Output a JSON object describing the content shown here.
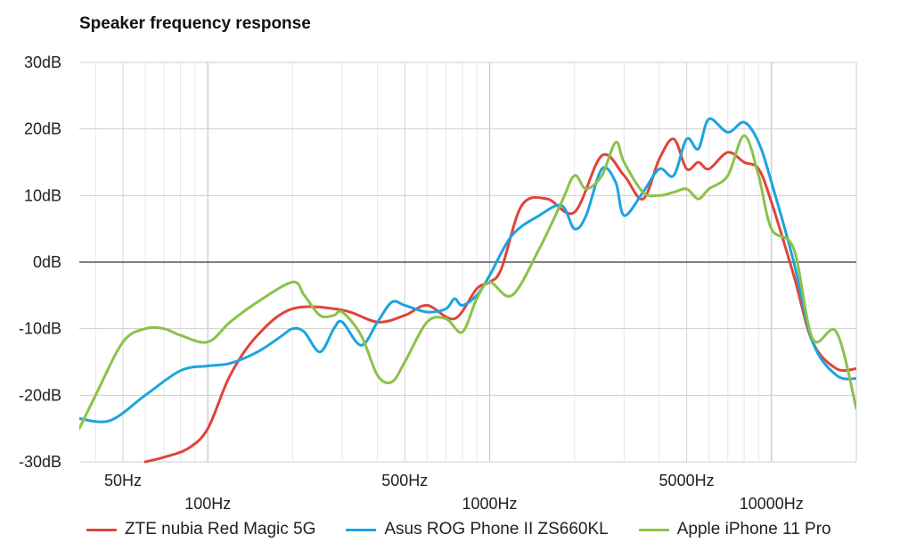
{
  "title": "Speaker frequency response",
  "chart_data": {
    "type": "line",
    "title": "Speaker frequency response",
    "x_scale": "log",
    "xlim": [
      35,
      20000
    ],
    "ylim": [
      -30,
      30
    ],
    "y_ticks": [
      30,
      20,
      10,
      0,
      -10,
      -20,
      -30
    ],
    "y_tick_labels": [
      "30dB",
      "20dB",
      "10dB",
      "0dB",
      "-10dB",
      "-20dB",
      "-30dB"
    ],
    "x_ticks": [
      50,
      100,
      500,
      1000,
      5000,
      10000
    ],
    "x_tick_labels": [
      "50Hz",
      "100Hz",
      "500Hz",
      "1000Hz",
      "5000Hz",
      "10000Hz"
    ],
    "grid": true,
    "legend_position": "bottom",
    "series": [
      {
        "name": "ZTE nubia Red Magic 5G",
        "color": "#e0443a",
        "x": [
          60,
          70,
          85,
          100,
          120,
          150,
          200,
          300,
          400,
          500,
          600,
          750,
          900,
          1000,
          1100,
          1300,
          1600,
          2000,
          2500,
          3000,
          3500,
          4000,
          4500,
          5000,
          5500,
          6000,
          7000,
          8000,
          9000,
          10000,
          12000,
          14000,
          17000,
          20000
        ],
        "y": [
          -30,
          -29.3,
          -28,
          -25,
          -17,
          -11,
          -7,
          -7.2,
          -9,
          -8,
          -6.5,
          -8.5,
          -4,
          -3,
          -1,
          8.5,
          9.5,
          7.5,
          16,
          13,
          9.5,
          15.5,
          18.5,
          14,
          15,
          14,
          16.5,
          15,
          14,
          9,
          -2,
          -12,
          -16,
          -16
        ]
      },
      {
        "name": "Asus ROG Phone II ZS660KL",
        "color": "#1da3e0",
        "x": [
          35,
          45,
          60,
          80,
          100,
          120,
          150,
          180,
          200,
          220,
          250,
          280,
          300,
          350,
          400,
          450,
          500,
          600,
          700,
          750,
          800,
          900,
          1000,
          1200,
          1500,
          1800,
          2000,
          2200,
          2500,
          2800,
          3000,
          3500,
          4000,
          4500,
          5000,
          5500,
          6000,
          7000,
          8000,
          9000,
          10000,
          12000,
          14000,
          17000,
          20000
        ],
        "y": [
          -23.5,
          -23.8,
          -20,
          -16.3,
          -15.6,
          -15.2,
          -13.5,
          -11.3,
          -10,
          -10.5,
          -13.5,
          -10,
          -9,
          -12.5,
          -9,
          -6,
          -6.5,
          -7.5,
          -7,
          -5.5,
          -6.5,
          -5,
          -2,
          4,
          7,
          8.5,
          5,
          7,
          14,
          12,
          7,
          10.5,
          14,
          13,
          18.5,
          17,
          21.5,
          19.5,
          21,
          18,
          12,
          0,
          -12,
          -17,
          -17.5
        ]
      },
      {
        "name": "Apple iPhone 11 Pro",
        "color": "#8bc24a",
        "x": [
          35,
          40,
          50,
          60,
          70,
          80,
          100,
          120,
          150,
          200,
          220,
          250,
          280,
          300,
          350,
          400,
          450,
          500,
          600,
          700,
          800,
          900,
          1000,
          1200,
          1500,
          1800,
          2000,
          2200,
          2500,
          2800,
          3000,
          3500,
          4000,
          4500,
          5000,
          5500,
          6000,
          7000,
          8000,
          9000,
          10000,
          12000,
          14000,
          17000,
          20000
        ],
        "y": [
          -25,
          -20,
          -12,
          -10,
          -10,
          -11,
          -12,
          -9,
          -6,
          -3,
          -5,
          -8,
          -8,
          -7.5,
          -11,
          -17,
          -18,
          -15,
          -9,
          -8.5,
          -10.5,
          -5.5,
          -3,
          -5,
          2,
          9,
          13,
          11,
          13,
          18,
          15,
          10.5,
          10,
          10.5,
          11,
          9.5,
          11,
          13,
          19,
          13,
          5,
          2,
          -11.5,
          -10.5,
          -22
        ]
      }
    ]
  }
}
